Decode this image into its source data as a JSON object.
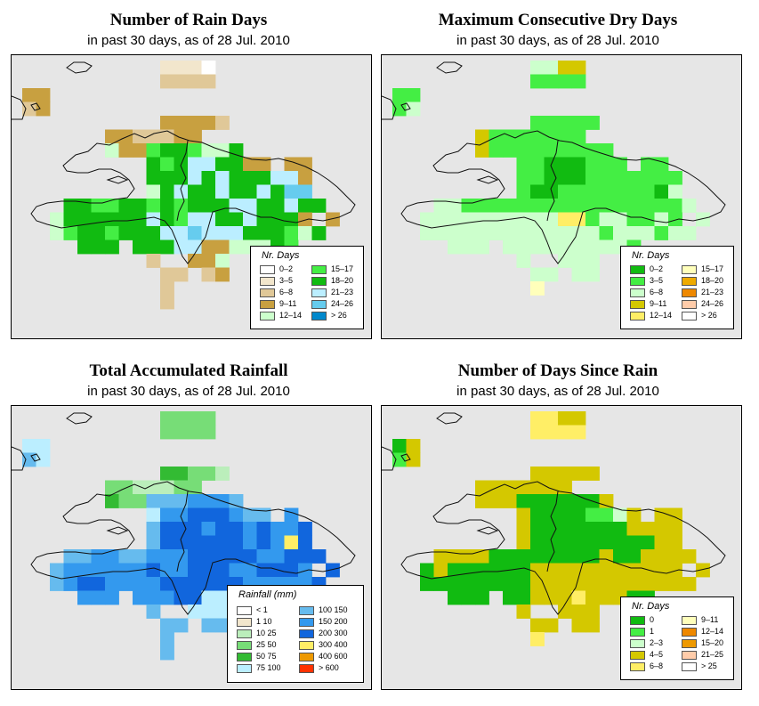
{
  "panels": [
    {
      "title": "Number of Rain Days",
      "subtitle": "in past 30 days, as of  28 Jul. 2010",
      "legend_title": "Nr. Days",
      "legend": [
        {
          "label": "0–2",
          "color": "#ffffff"
        },
        {
          "label": "3–5",
          "color": "#f2e6cc"
        },
        {
          "label": "6–8",
          "color": "#e0c898"
        },
        {
          "label": "9–11",
          "color": "#c8a040"
        },
        {
          "label": "12–14",
          "color": "#ccffcc"
        },
        {
          "label": "15–17",
          "color": "#44ee44"
        },
        {
          "label": "18–20",
          "color": "#11bb11"
        },
        {
          "label": "21–23",
          "color": "#bbeeff"
        },
        {
          "label": "24–26",
          "color": "#66ccee"
        },
        {
          "label": "> 26",
          "color": "#0088cc"
        }
      ],
      "grid": [
        "..........1110..........",
        "..........2222..........",
        "33......................",
        "23......................",
        "..........33332.........",
        "......3322233...........",
        "......4335665446........",
        ".........656776633.33....",
        ".........666767666773....",
        ".........467667667688....",
        "...6655665656667766766...",
        "..4666666765776676663.3..",
        "..45665666778777666546...",
        "....666.666773344465.....",
        ".........2..334........",
        "..........22.23..........",
        "..........2..............",
        "..........2.............."
      ]
    },
    {
      "title": "Maximum Consecutive Dry Days",
      "subtitle": "in past 30 days, as of  28 Jul. 2010",
      "legend_title": "Nr. Days",
      "legend": [
        {
          "label": "0–2",
          "color": "#11bb11"
        },
        {
          "label": "3–5",
          "color": "#44ee44"
        },
        {
          "label": "6–8",
          "color": "#ccffcc"
        },
        {
          "label": "9–11",
          "color": "#d4c800"
        },
        {
          "label": "12–14",
          "color": "#ffee66"
        },
        {
          "label": "15–17",
          "color": "#ffffbb"
        },
        {
          "label": "18–20",
          "color": "#eeaa00"
        },
        {
          "label": "21–23",
          "color": "#ee8800"
        },
        {
          "label": "24–26",
          "color": "#ffccaa"
        },
        {
          "label": "> 26",
          "color": "#ffffff"
        }
      ],
      "grid": [
        "..........2233..........",
        "..........1111..........",
        "11......................",
        "12......................",
        "..........11111.........",
        "......31111111..........",
        "......3111111111........",
        ".........11000111.11....",
        ".........110001111111....",
        ".........100111111102....",
        "...2211111111111111112...",
        "..2222222222441221121.2..",
        "..22222222222221222122...",
        "....222.2222222221.......",
        ".........2..222........",
        "..........22.22..........",
        "..........5..............",
        ".........................."
      ]
    },
    {
      "title": "Total Accumulated Rainfall",
      "subtitle": "in past 30 days, as of  28 Jul. 2010",
      "legend_title": "Rainfall (mm)",
      "legend": [
        {
          "label": "< 1",
          "color": "#ffffff"
        },
        {
          "label": "1    10",
          "color": "#f2e6cc"
        },
        {
          "label": "10    25",
          "color": "#bbeebb"
        },
        {
          "label": "25    50",
          "color": "#77dd77"
        },
        {
          "label": "50    75",
          "color": "#33bb33"
        },
        {
          "label": "75    100",
          "color": "#bbeeff"
        },
        {
          "label": "100    150",
          "color": "#66bbee"
        },
        {
          "label": "150    200",
          "color": "#3399ee"
        },
        {
          "label": "200    300",
          "color": "#1166dd"
        },
        {
          "label": "300    400",
          "color": "#ffee66"
        },
        {
          "label": "400    600",
          "color": "#ee9900"
        },
        {
          "label": "> 600",
          "color": "#ff3300"
        }
      ],
      "grid": [
        "..........3333..........",
        "..........3333..........",
        "55......................",
        "65......................",
        "..........44332.........",
        "......3322233...........",
        "......4336667776........",
        ".........577888766.7....",
        ".........688878878778....",
        ".........688888878798....",
        "...6677667778888877888...",
        "..6777777877888778887.8..",
        "..67887777888888777778...",
        "....777.777885577667.....",
        ".........6..555........",
        "..........66.66..........",
        "..........6..............",
        "..........6.............."
      ]
    },
    {
      "title": "Number of Days Since Rain",
      "subtitle": "in past 30 days, as of  28 Jul. 2010",
      "legend_title": "Nr. Days",
      "legend": [
        {
          "label": "0",
          "color": "#11bb11"
        },
        {
          "label": "1",
          "color": "#44ee44"
        },
        {
          "label": "2–3",
          "color": "#ccffcc"
        },
        {
          "label": "4–5",
          "color": "#d4c800"
        },
        {
          "label": "6–8",
          "color": "#ffee66"
        },
        {
          "label": "9–11",
          "color": "#ffffbb"
        },
        {
          "label": "12–14",
          "color": "#ee8800"
        },
        {
          "label": "15–20",
          "color": "#ee9900"
        },
        {
          "label": "21–25",
          "color": "#ffccaa"
        },
        {
          "label": "> 25",
          "color": "#ffffff"
        }
      ],
      "grid": [
        "..........4433..........",
        "..........4444..........",
        "03......................",
        "13......................",
        "..........33333.........",
        "......3333333...........",
        "......3330000003........",
        ".........300001123.33....",
        ".........300000003333....",
        ".........300000000033....",
        "...3333000000003003333...",
        "..0300000033333333333.3..",
        "..00000000333333333333...",
        "....000.00333433300......",
        ".........3..333........",
        "..........33.33..........",
        "..........4..............",
        ".........................."
      ]
    }
  ]
}
